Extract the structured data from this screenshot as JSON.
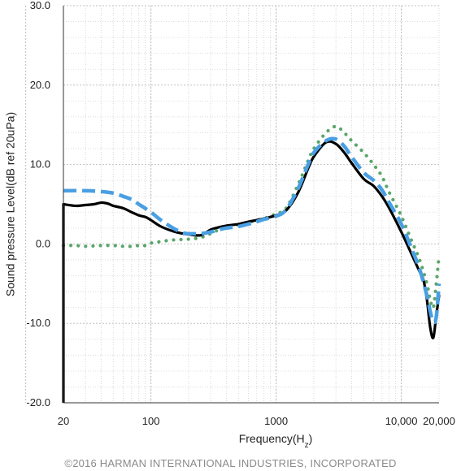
{
  "chart_data": {
    "type": "line",
    "title": "",
    "xlabel": "Frequency(Hz)",
    "ylabel": "Sound pressure Level(dB ref 20uPa)",
    "x_scale": "log",
    "xlim": [
      20,
      20000
    ],
    "ylim": [
      -20,
      30
    ],
    "x_ticks": [
      20,
      100,
      1000,
      10000,
      20000
    ],
    "x_tick_labels": [
      "20",
      "100",
      "1000",
      "10,000",
      "20,000"
    ],
    "y_ticks": [
      -20,
      -10,
      0,
      10,
      20,
      30
    ],
    "y_tick_labels": [
      "-20.0",
      "-10.0",
      "0.0",
      "10.0",
      "20.0",
      "30.0"
    ],
    "grid": true,
    "series": [
      {
        "style": "solid",
        "color": "#000000",
        "x": [
          20,
          25,
          30,
          35,
          40,
          45,
          50,
          60,
          70,
          80,
          90,
          100,
          120,
          150,
          180,
          200,
          250,
          300,
          350,
          400,
          500,
          600,
          700,
          800,
          1000,
          1200,
          1500,
          1800,
          2000,
          2500,
          3000,
          3500,
          4000,
          5000,
          6000,
          7000,
          8000,
          10000,
          12000,
          14000,
          15000,
          16000,
          17000,
          18000,
          19000,
          20000
        ],
        "y": [
          5.0,
          4.8,
          4.9,
          5.0,
          5.2,
          5.1,
          4.8,
          4.5,
          4.0,
          3.6,
          3.4,
          3.0,
          2.2,
          1.6,
          1.3,
          1.2,
          1.1,
          1.8,
          2.1,
          2.3,
          2.5,
          2.8,
          3.0,
          3.2,
          3.6,
          4.2,
          6.5,
          9.5,
          11.0,
          12.8,
          12.6,
          11.5,
          10.2,
          8.2,
          7.3,
          6.0,
          4.5,
          1.5,
          -1.2,
          -3.5,
          -4.5,
          -7.0,
          -10.5,
          -11.8,
          -9.0,
          -6.5
        ]
      },
      {
        "style": "dashed",
        "color": "#4A9FE3",
        "x": [
          20,
          30,
          40,
          50,
          60,
          70,
          80,
          100,
          120,
          150,
          180,
          200,
          250,
          300,
          350,
          400,
          500,
          600,
          700,
          800,
          1000,
          1200,
          1500,
          1800,
          2000,
          2500,
          3000,
          3500,
          4000,
          5000,
          6000,
          7000,
          8000,
          10000,
          12000,
          14000,
          16000,
          17000,
          18000,
          19000,
          20000
        ],
        "y": [
          6.7,
          6.7,
          6.6,
          6.4,
          6.0,
          5.6,
          5.0,
          4.0,
          3.0,
          2.0,
          1.4,
          1.3,
          1.3,
          1.5,
          1.8,
          2.0,
          2.2,
          2.5,
          2.8,
          3.1,
          3.5,
          4.3,
          7.0,
          10.0,
          11.5,
          13.0,
          13.2,
          12.3,
          11.0,
          9.0,
          8.0,
          6.8,
          5.2,
          2.5,
          -0.5,
          -3.2,
          -6.5,
          -8.5,
          -9.8,
          -9.2,
          -5.0
        ]
      },
      {
        "style": "dotted",
        "color": "#5AA66A",
        "x": [
          20,
          25,
          30,
          40,
          50,
          60,
          70,
          80,
          90,
          100,
          120,
          150,
          200,
          250,
          300,
          350,
          400,
          500,
          600,
          700,
          800,
          1000,
          1200,
          1500,
          1800,
          2000,
          2500,
          3000,
          3500,
          4000,
          5000,
          6000,
          7000,
          8000,
          10000,
          12000,
          14000,
          16000,
          17000,
          18000,
          19000,
          20000
        ],
        "y": [
          -0.2,
          -0.2,
          -0.3,
          -0.2,
          -0.2,
          -0.3,
          -0.3,
          -0.2,
          -0.2,
          0.1,
          0.3,
          0.5,
          0.6,
          0.8,
          1.3,
          1.8,
          2.1,
          2.4,
          2.7,
          3.0,
          3.2,
          3.8,
          4.5,
          7.5,
          10.5,
          12.0,
          14.0,
          14.8,
          14.0,
          13.0,
          11.5,
          10.0,
          8.5,
          6.5,
          3.5,
          0.5,
          -2.0,
          -5.0,
          -7.0,
          -8.0,
          -5.0,
          -1.5
        ]
      }
    ]
  },
  "footer": {
    "copyright": "©2016 HARMAN INTERNATIONAL INDUSTRIES, INCORPORATED"
  }
}
